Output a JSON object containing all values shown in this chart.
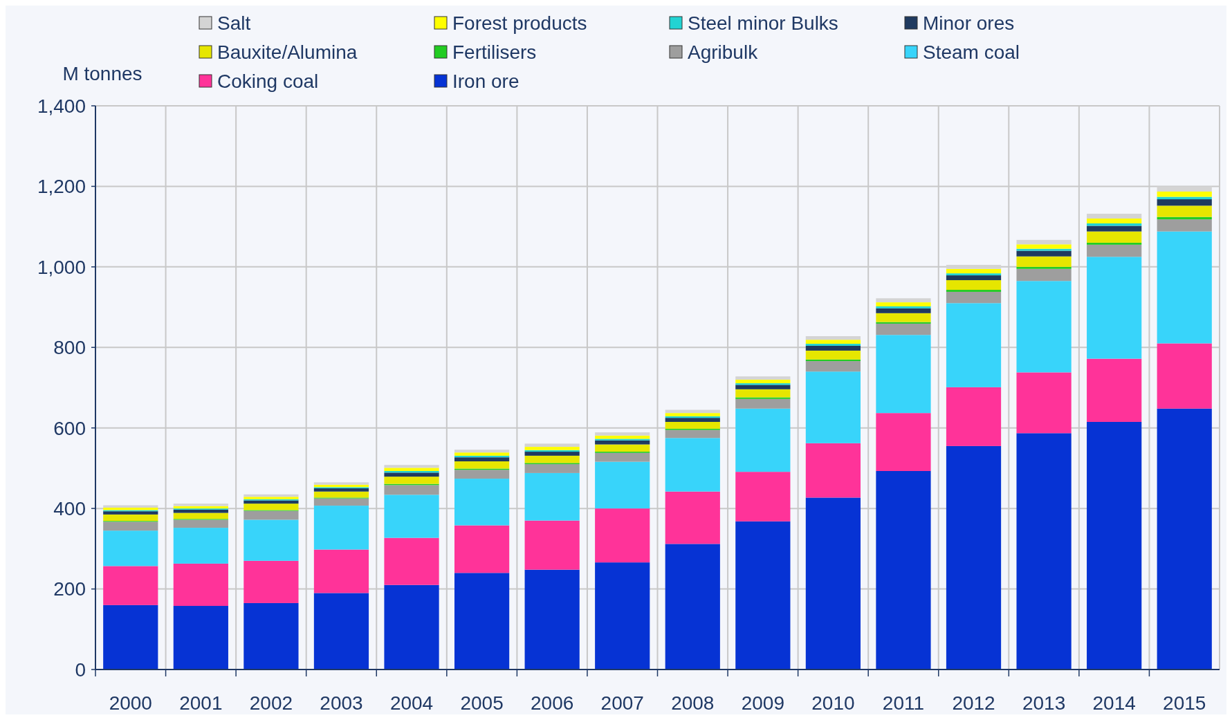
{
  "chart_data": {
    "type": "bar",
    "stacked": true,
    "ylabel": "M tonnes",
    "categories": [
      "2000",
      "2001",
      "2002",
      "2003",
      "2004",
      "2005",
      "2006",
      "2007",
      "2008",
      "2009",
      "2010",
      "2011",
      "2012",
      "2013",
      "2014",
      "2015"
    ],
    "series": [
      {
        "name": "Iron ore",
        "color": "#0633d4",
        "values": [
          160,
          158,
          165,
          190,
          210,
          240,
          248,
          266,
          312,
          368,
          427,
          493,
          555,
          587,
          615,
          648
        ]
      },
      {
        "name": "Coking coal",
        "color": "#ff3399",
        "values": [
          97,
          105,
          105,
          108,
          117,
          118,
          122,
          134,
          130,
          123,
          135,
          144,
          146,
          151,
          157,
          162
        ]
      },
      {
        "name": "Steam coal",
        "color": "#38d4fa",
        "values": [
          88,
          89,
          102,
          109,
          107,
          116,
          118,
          116,
          133,
          157,
          178,
          194,
          209,
          227,
          253,
          278
        ]
      },
      {
        "name": "Agribulk",
        "color": "#9e9e9e",
        "values": [
          22,
          20,
          22,
          18,
          24,
          22,
          22,
          22,
          20,
          24,
          26,
          28,
          28,
          30,
          30,
          30
        ]
      },
      {
        "name": "Fertilisers",
        "color": "#22cc22",
        "values": [
          2,
          2,
          2,
          2,
          3,
          3,
          3,
          3,
          3,
          4,
          4,
          4,
          5,
          5,
          5,
          6
        ]
      },
      {
        "name": "Bauxite/Alumina",
        "color": "#e6e600",
        "values": [
          16,
          15,
          16,
          15,
          18,
          18,
          18,
          18,
          17,
          20,
          22,
          22,
          24,
          26,
          28,
          28
        ]
      },
      {
        "name": "Minor ores",
        "color": "#1f3a5f",
        "values": [
          8,
          8,
          8,
          8,
          10,
          10,
          10,
          10,
          10,
          11,
          12,
          12,
          12,
          14,
          14,
          16
        ]
      },
      {
        "name": "Steel minor Bulks",
        "color": "#22d3d3",
        "values": [
          3,
          3,
          3,
          3,
          4,
          4,
          4,
          4,
          4,
          4,
          5,
          5,
          5,
          5,
          6,
          6
        ]
      },
      {
        "name": "Forest products",
        "color": "#ffff00",
        "values": [
          6,
          6,
          6,
          6,
          8,
          8,
          8,
          8,
          8,
          9,
          10,
          10,
          11,
          11,
          12,
          13
        ]
      },
      {
        "name": "Salt",
        "color": "#d4d4d4",
        "values": [
          6,
          6,
          6,
          6,
          7,
          7,
          8,
          8,
          8,
          8,
          9,
          10,
          10,
          11,
          12,
          13
        ]
      }
    ],
    "ylim": [
      0,
      1400
    ],
    "yticks": [
      {
        "value": 0,
        "label": "0"
      },
      {
        "value": 200,
        "label": "200"
      },
      {
        "value": 400,
        "label": "400"
      },
      {
        "value": 600,
        "label": "600"
      },
      {
        "value": 800,
        "label": "800"
      },
      {
        "value": 1000,
        "label": "1,000"
      },
      {
        "value": 1200,
        "label": "1,200"
      },
      {
        "value": 1400,
        "label": "1,400"
      }
    ],
    "grid": true,
    "legend": "top"
  }
}
